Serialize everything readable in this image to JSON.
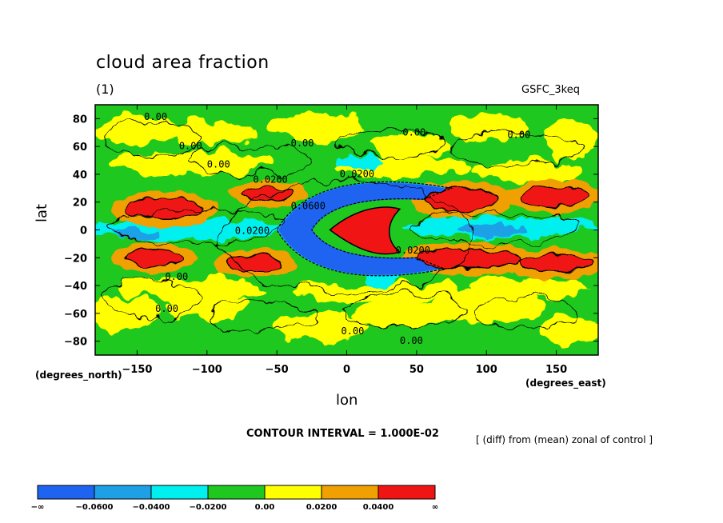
{
  "header": {
    "title": "cloud area fraction",
    "subtitle": "(1)",
    "model": "GSFC_3keq"
  },
  "footer": {
    "contour_interval": "CONTOUR INTERVAL = 1.000E-02",
    "note": "[ (diff) from (mean) zonal of control ]"
  },
  "chart_data": {
    "type": "heatmap",
    "title": "cloud area fraction",
    "subtitle": "(1)",
    "xlabel": "lon",
    "ylabel": "lat",
    "x_unit": "(degrees_east)",
    "y_unit": "(degrees_north)",
    "xlim": [
      -180,
      180
    ],
    "ylim": [
      -90,
      90
    ],
    "x_ticks": [
      -150,
      -100,
      -50,
      0,
      50,
      100,
      150
    ],
    "y_ticks": [
      80,
      60,
      40,
      20,
      0,
      -20,
      -40,
      -60,
      -80
    ],
    "colorbar": {
      "levels": [
        "-∞",
        "-0.0600",
        "-0.0400",
        "-0.0200",
        "0.00",
        "0.0200",
        "0.0400",
        "∞"
      ],
      "colors": [
        "#1e64f0",
        "#1ea0e6",
        "#00f0f0",
        "#1ec81e",
        "#ffff00",
        "#f0a000",
        "#f01414"
      ]
    },
    "features": [
      {
        "kind": "blob",
        "value": 0.05,
        "lon": -130,
        "lat": 15,
        "rx": 28,
        "ry": 8
      },
      {
        "kind": "blob",
        "value": 0.05,
        "lon": -57,
        "lat": 26,
        "rx": 18,
        "ry": 5
      },
      {
        "kind": "blob",
        "value": 0.05,
        "lon": 82,
        "lat": 22,
        "rx": 27,
        "ry": 8
      },
      {
        "kind": "blob",
        "value": 0.05,
        "lon": 148,
        "lat": 24,
        "rx": 24,
        "ry": 7
      },
      {
        "kind": "blob",
        "value": 0.05,
        "lon": -138,
        "lat": -20,
        "rx": 20,
        "ry": 6
      },
      {
        "kind": "blob",
        "value": 0.05,
        "lon": -65,
        "lat": -24,
        "rx": 20,
        "ry": 6
      },
      {
        "kind": "blob",
        "value": 0.05,
        "lon": 88,
        "lat": -21,
        "rx": 38,
        "ry": 7
      },
      {
        "kind": "blob",
        "value": 0.05,
        "lon": 150,
        "lat": -24,
        "rx": 25,
        "ry": 6
      },
      {
        "kind": "crescent",
        "value": -0.07,
        "lon": -5,
        "lat": 0,
        "rx": 65,
        "ry": 33
      },
      {
        "kind": "crescent-core",
        "value": 0.05,
        "lon": 8,
        "lat": 0,
        "rx": 28,
        "ry": 18
      }
    ],
    "contour_labels": [
      {
        "text": "0.00",
        "lon": -145,
        "lat": 79
      },
      {
        "text": "0.00",
        "lon": -120,
        "lat": 58
      },
      {
        "text": "0.00",
        "lon": -100,
        "lat": 45
      },
      {
        "text": "0.0200",
        "lon": -67,
        "lat": 34
      },
      {
        "text": "0.00",
        "lon": -40,
        "lat": 60
      },
      {
        "text": "0.0200",
        "lon": -5,
        "lat": 38
      },
      {
        "text": "0.00",
        "lon": 40,
        "lat": 68
      },
      {
        "text": "0.00",
        "lon": 115,
        "lat": 66
      },
      {
        "text": "0.0600",
        "lon": -40,
        "lat": 15
      },
      {
        "text": "0.0200",
        "lon": -80,
        "lat": -3
      },
      {
        "text": "0.00",
        "lon": -130,
        "lat": -36
      },
      {
        "text": "0.00",
        "lon": -137,
        "lat": -59
      },
      {
        "text": "0.00",
        "lon": -4,
        "lat": -75
      },
      {
        "text": "0.00",
        "lon": 38,
        "lat": -82
      },
      {
        "text": "0.0200",
        "lon": 35,
        "lat": -17
      }
    ]
  }
}
